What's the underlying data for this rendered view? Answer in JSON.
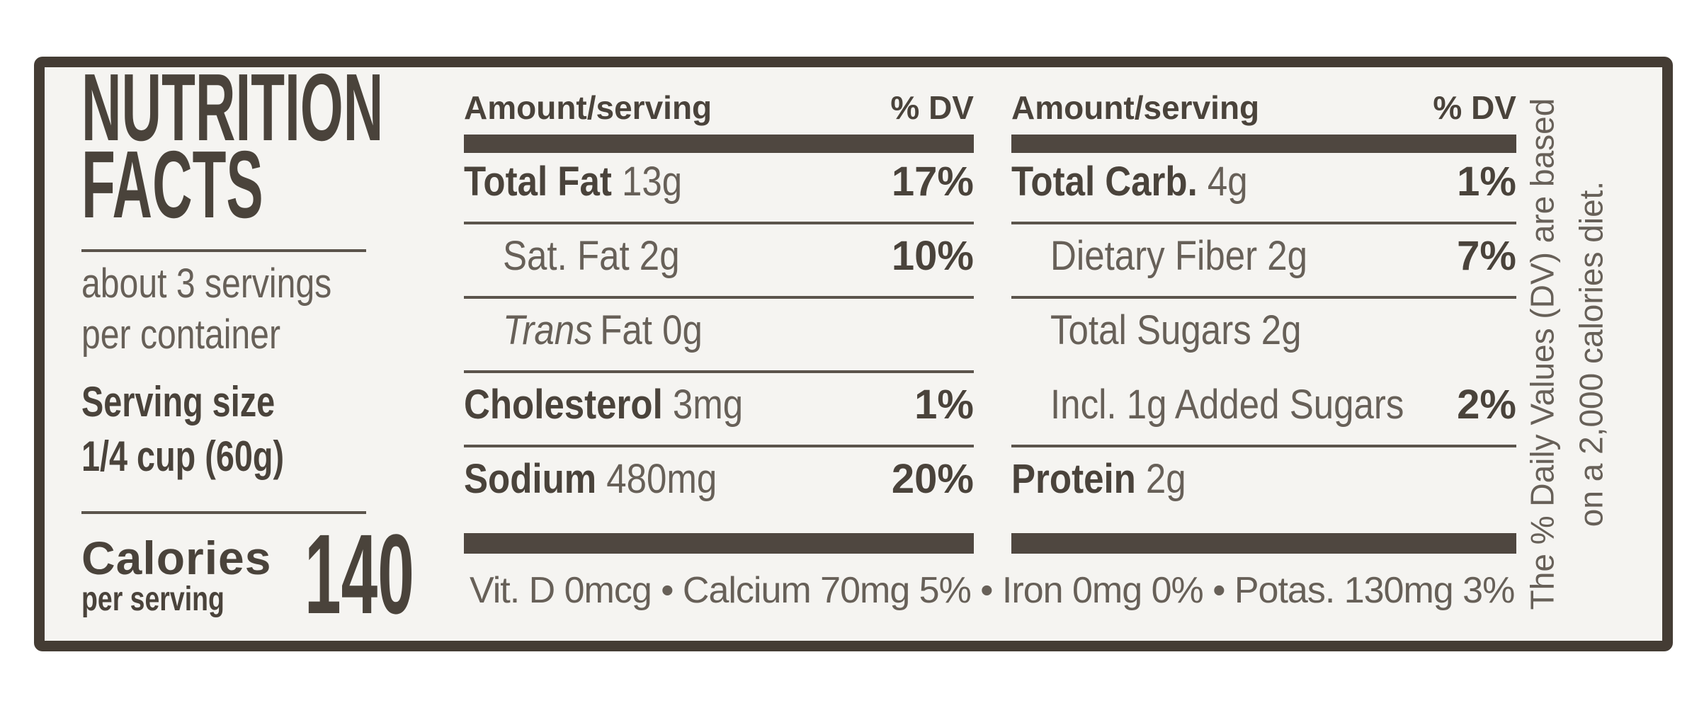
{
  "label": {
    "title_line1": "NUTRITION",
    "title_line2": "FACTS",
    "servings_per_container_line1": "about 3 servings",
    "servings_per_container_line2": "per container",
    "serving_size_label": "Serving size",
    "serving_size_value": "1/4 cup (60g)",
    "calories_label": "Calories",
    "calories_sublabel": "per serving",
    "calories_value": "140",
    "footnote": "Vit. D 0mcg • Calcium 70mg 5% • Iron 0mg 0% • Potas. 130mg 3%",
    "note_line1": "The % Daily Values (DV) are based",
    "note_line2": "on a 2,000 calories diet.",
    "colors": {
      "border": "#443c34",
      "bar": "#4f4740",
      "bold_text": "#4a433b",
      "regular_text": "#676058",
      "rule": "#5b544c",
      "background": "#f5f4f1"
    }
  },
  "columns": [
    {
      "header_amount": "Amount/serving",
      "header_dv": "% DV",
      "rows": [
        {
          "name": "Total Fat",
          "amount": "13g",
          "dv": "17%"
        },
        {
          "name": "Sat. Fat",
          "amount": "2g",
          "dv": "10%"
        },
        {
          "name_italic": "Trans",
          "name": "Fat",
          "amount": "0g",
          "dv": ""
        },
        {
          "name": "Cholesterol",
          "amount": "3mg",
          "dv": "1%"
        },
        {
          "name": "Sodium",
          "amount": "480mg",
          "dv": "20%"
        }
      ]
    },
    {
      "header_amount": "Amount/serving",
      "header_dv": "% DV",
      "rows": [
        {
          "name": "Total Carb.",
          "amount": "4g",
          "dv": "1%"
        },
        {
          "name": "Dietary Fiber",
          "amount": "2g",
          "dv": "7%"
        },
        {
          "name": "Total Sugars",
          "amount": "2g",
          "dv": ""
        },
        {
          "name": "Incl. 1g Added Sugars",
          "amount": "",
          "dv": "2%"
        },
        {
          "name": "Protein",
          "amount": "2g",
          "dv": ""
        }
      ]
    }
  ]
}
